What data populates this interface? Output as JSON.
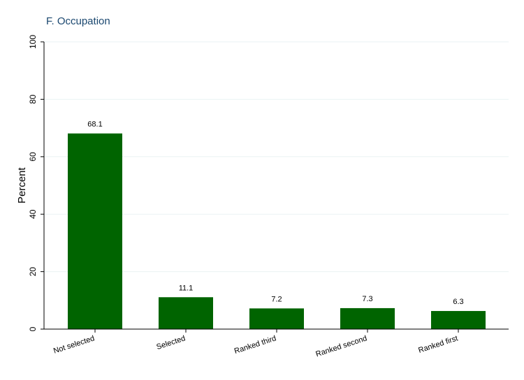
{
  "chart_data": {
    "type": "bar",
    "title": "F. Occupation",
    "xlabel": "",
    "ylabel": "Percent",
    "categories": [
      "Not selected",
      "Selected",
      "Ranked third",
      "Ranked second",
      "Ranked first"
    ],
    "values": [
      68.1,
      11.1,
      7.2,
      7.3,
      6.3
    ],
    "value_labels": [
      "68.1",
      "11.1",
      "7.2",
      "7.3",
      "6.3"
    ],
    "ylim": [
      0,
      100
    ],
    "yticks": [
      0,
      20,
      40,
      60,
      80,
      100
    ],
    "grid": true,
    "legend": "none",
    "bar_color": "#006400",
    "grid_color": "#eaf2f3",
    "title_color": "#1a476f"
  }
}
